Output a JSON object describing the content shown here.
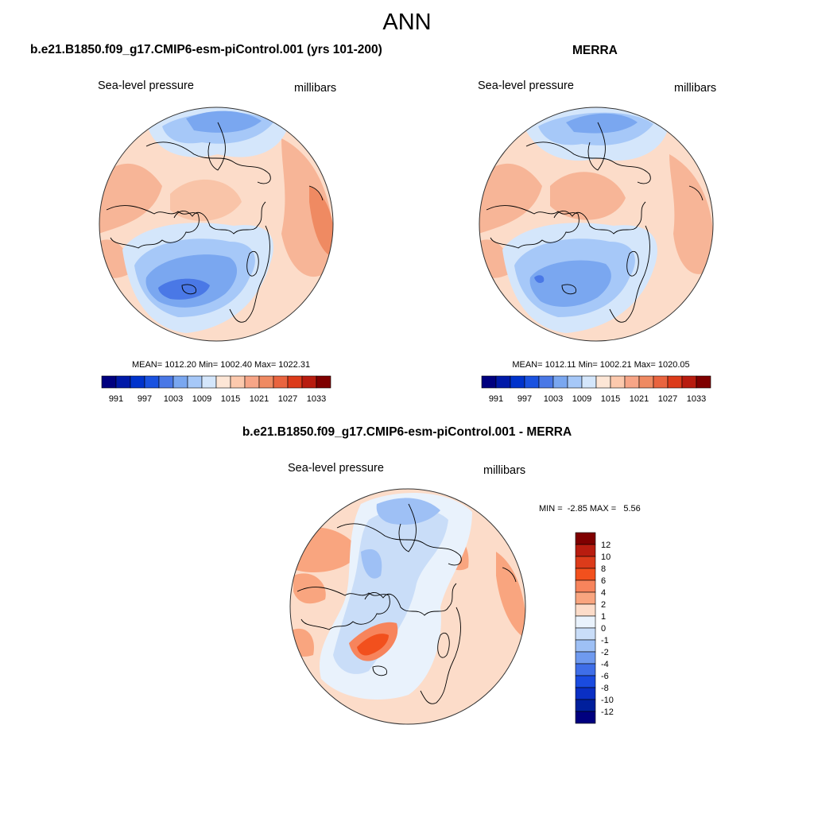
{
  "page": {
    "title": "ANN",
    "colors": {
      "coast": "#000000",
      "frame": "#333333"
    }
  },
  "panels": [
    {
      "id": "model",
      "heading": "b.e21.B1850.f09_g17.CMIP6-esm-piControl.001 (yrs 101-200)",
      "variable": "Sea-level pressure",
      "units": "millibars",
      "stats": {
        "mean": "1012.20",
        "min": "1002.40",
        "max": "1022.31"
      },
      "stats_text": "MEAN= 1012.20  Min= 1002.40  Max= 1022.31",
      "map_layers": {
        "base": "#fcdcc9",
        "zones": [
          {
            "fill": "#d4e6fb",
            "note": "light blue ring around lows"
          },
          {
            "fill": "#a6c8f8",
            "note": "medium blue"
          },
          {
            "fill": "#7aa7f0",
            "note": "blue"
          },
          {
            "fill": "#4a78e6",
            "note": "Icelandic low core"
          },
          {
            "fill": "#f7b597",
            "note": "high pressure light red"
          },
          {
            "fill": "#ef8a62",
            "note": "high pressure red"
          }
        ]
      }
    },
    {
      "id": "obs",
      "heading": "MERRA",
      "variable": "Sea-level pressure",
      "units": "millibars",
      "stats": {
        "mean": "1012.11",
        "min": "1002.21",
        "max": "1020.05"
      },
      "stats_text": "MEAN= 1012.11  Min= 1002.21  Max= 1020.05"
    },
    {
      "id": "diff",
      "heading": "b.e21.B1850.f09_g17.CMIP6-esm-piControl.001 - MERRA",
      "variable": "Sea-level pressure",
      "units": "millibars",
      "minmax_text": "MIN =  -2.85 MAX =   5.56",
      "stats": {
        "min": "-2.85",
        "max": "5.56"
      }
    }
  ],
  "colorbar_abs": {
    "colors": [
      "#00007f",
      "#0019a8",
      "#0033cc",
      "#1a52e0",
      "#4a78e6",
      "#7aa7f0",
      "#a6c8f8",
      "#d4e6fb",
      "#fde6d6",
      "#fcc9ad",
      "#f7a587",
      "#ef8a62",
      "#e9643f",
      "#dc3b1a",
      "#b81c0f",
      "#7f0000"
    ],
    "tick_labels": [
      "991",
      "997",
      "1003",
      "1009",
      "1015",
      "1021",
      "1027",
      "1033"
    ]
  },
  "colorbar_diff": {
    "colors": [
      "#7f0000",
      "#b81c0f",
      "#dc3b1a",
      "#f2501d",
      "#f7845c",
      "#f9a57f",
      "#fcdcc9",
      "#e9f2fc",
      "#c9ddf8",
      "#9ec0f5",
      "#6f9aef",
      "#3f6ee8",
      "#1a4be0",
      "#0a2fc4",
      "#001f9c",
      "#00007f"
    ],
    "tick_labels": [
      "12",
      "10",
      "8",
      "6",
      "4",
      "2",
      "1",
      "0",
      "-1",
      "-2",
      "-4",
      "-6",
      "-8",
      "-10",
      "-12"
    ]
  }
}
